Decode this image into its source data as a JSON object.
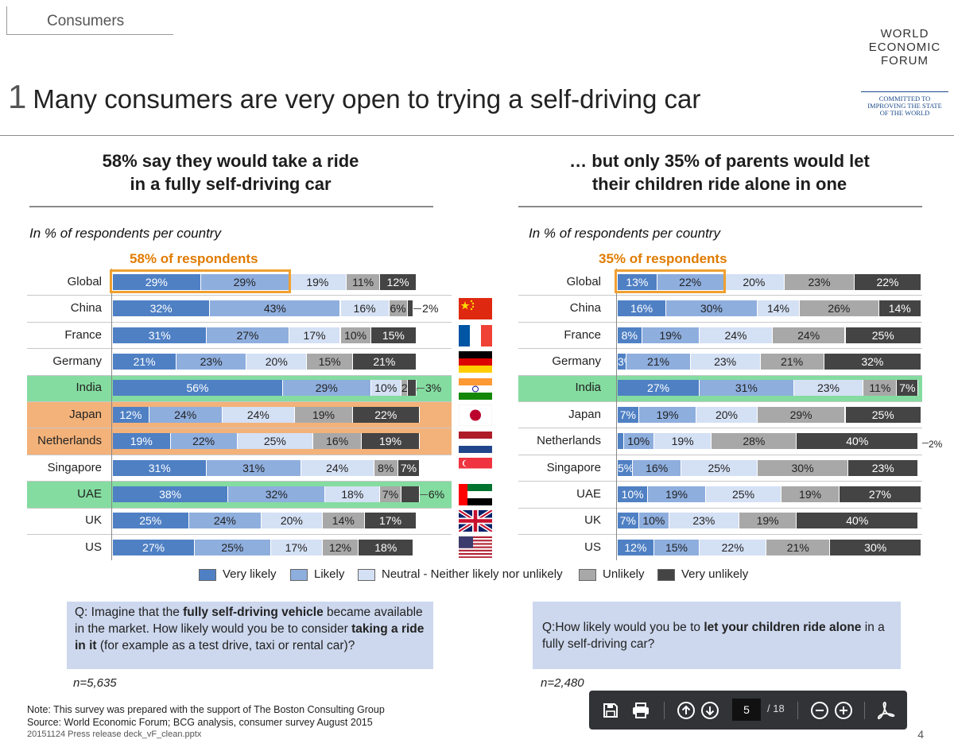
{
  "header": {
    "section": "Consumers",
    "slide_number": "1",
    "title": "Many consumers are very open to trying a self-driving car"
  },
  "logo": {
    "line1": "WORLD",
    "line2": "ECONOMIC",
    "line3": "FORUM",
    "tagline1": "COMMITTED TO",
    "tagline2": "IMPROVING THE STATE",
    "tagline3": "OF THE WORLD"
  },
  "left": {
    "headline1": "58% say they would take a ride",
    "headline2": "in a fully self-driving car",
    "units": "In % of respondents per country",
    "highlight": "58% of respondents",
    "question_parts": [
      {
        "t": "Q: Imagine that the ",
        "b": false
      },
      {
        "t": "fully self-driving vehicle",
        "b": true
      },
      {
        "t": " became available in the market. How likely would you be to consider ",
        "b": false
      },
      {
        "t": "taking a ride in it",
        "b": true
      },
      {
        "t": " (for example as a test drive, taxi or rental car)?",
        "b": false
      }
    ],
    "n": "n=5,635"
  },
  "right": {
    "headline1": "… but only 35% of parents would let",
    "headline2": "their children ride alone in one",
    "units": "In % of respondents per country",
    "highlight": "35% of respondents",
    "question_parts": [
      {
        "t": "Q:How likely would you be to ",
        "b": false
      },
      {
        "t": "let your children ride alone",
        "b": true
      },
      {
        "t": " in a fully self-driving car?",
        "b": false
      }
    ],
    "n": "n=2,480"
  },
  "legend": [
    {
      "label": "Very likely",
      "color": "#4f80c4"
    },
    {
      "label": "Likely",
      "color": "#8eaede"
    },
    {
      "label": "Neutral - Neither likely nor unlikely",
      "color": "#d4e0f4"
    },
    {
      "label": "Unlikely",
      "color": "#a8a8a8"
    },
    {
      "label": "Very unlikely",
      "color": "#444444"
    }
  ],
  "footer": {
    "note": "Note: This survey was prepared with the support of The Boston Consulting Group",
    "source": "Source: World Economic Forum; BCG analysis, consumer survey August 2015",
    "file": "20151124 Press release deck_vF_clean.pptx",
    "page": "4"
  },
  "toolbar": {
    "page_value": "5",
    "page_total": "/ 18"
  },
  "chart_data": [
    {
      "type": "bar",
      "stacked": true,
      "orientation": "horizontal",
      "title": "58% say they would take a ride in a fully self-driving car",
      "categories": [
        "Global",
        "China",
        "France",
        "Germany",
        "India",
        "Japan",
        "Netherlands",
        "Singapore",
        "UAE",
        "UK",
        "US"
      ],
      "row_highlight": {
        "India": "green",
        "UAE": "green",
        "Japan": "orange",
        "Netherlands": "orange"
      },
      "series": [
        {
          "name": "Very likely",
          "values": [
            29,
            32,
            31,
            21,
            56,
            12,
            19,
            31,
            38,
            25,
            27
          ]
        },
        {
          "name": "Likely",
          "values": [
            29,
            43,
            27,
            23,
            29,
            24,
            22,
            31,
            32,
            24,
            25
          ]
        },
        {
          "name": "Neutral - Neither likely nor unlikely",
          "values": [
            19,
            16,
            17,
            20,
            10,
            24,
            25,
            24,
            18,
            20,
            17
          ]
        },
        {
          "name": "Unlikely",
          "values": [
            11,
            6,
            10,
            15,
            2,
            19,
            16,
            8,
            7,
            14,
            12
          ]
        },
        {
          "name": "Very unlikely",
          "values": [
            12,
            2,
            15,
            21,
            3,
            22,
            19,
            7,
            6,
            17,
            18
          ]
        }
      ],
      "flags": [
        "China",
        "France",
        "Germany",
        "India",
        "Japan",
        "Netherlands",
        "Singapore",
        "UAE",
        "UK",
        "US"
      ],
      "annotation": "58% of respondents"
    },
    {
      "type": "bar",
      "stacked": true,
      "orientation": "horizontal",
      "title": "… but only 35% of parents would let their children ride alone in one",
      "categories": [
        "Global",
        "China",
        "France",
        "Germany",
        "India",
        "Japan",
        "Netherlands",
        "Singapore",
        "UAE",
        "UK",
        "US"
      ],
      "row_highlight": {
        "India": "green"
      },
      "series": [
        {
          "name": "Very likely",
          "values": [
            13,
            16,
            8,
            3,
            27,
            7,
            2,
            5,
            10,
            7,
            12
          ]
        },
        {
          "name": "Likely",
          "values": [
            22,
            30,
            19,
            21,
            31,
            19,
            10,
            16,
            19,
            10,
            15
          ]
        },
        {
          "name": "Neutral - Neither likely nor unlikely",
          "values": [
            20,
            14,
            24,
            23,
            23,
            20,
            19,
            25,
            25,
            23,
            22
          ]
        },
        {
          "name": "Unlikely",
          "values": [
            23,
            26,
            24,
            21,
            11,
            29,
            28,
            30,
            19,
            19,
            21
          ]
        },
        {
          "name": "Very unlikely",
          "values": [
            22,
            14,
            25,
            32,
            7,
            25,
            40,
            23,
            27,
            40,
            30
          ]
        }
      ],
      "annotation": "35% of respondents"
    }
  ]
}
